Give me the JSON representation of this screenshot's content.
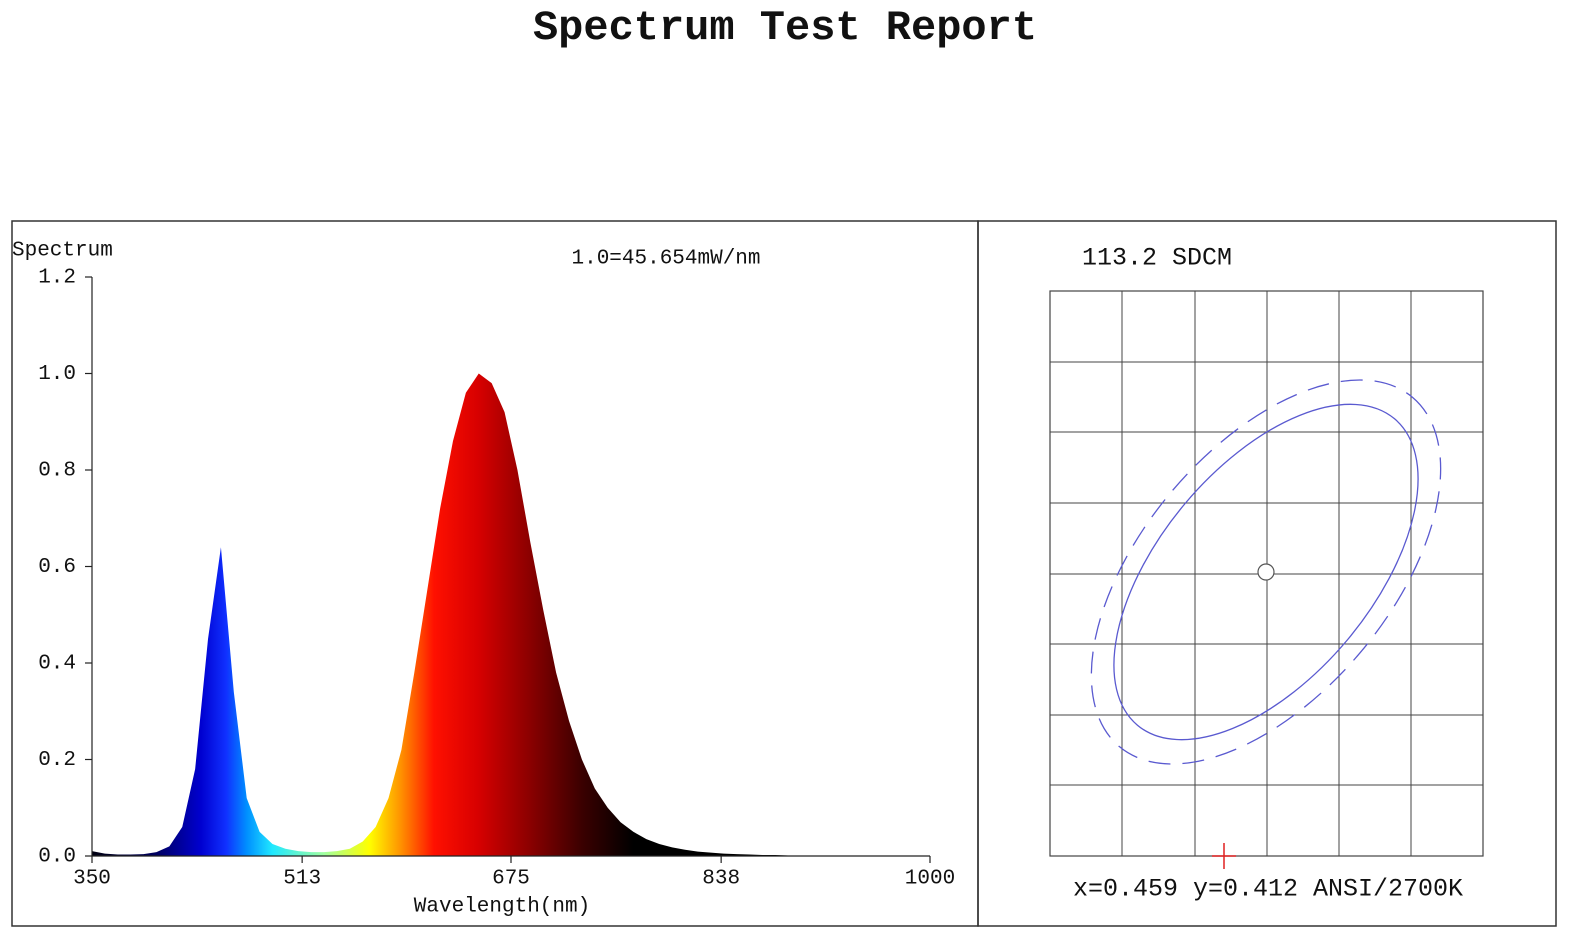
{
  "title": "Spectrum Test Report",
  "chart_data": {
    "type": "area",
    "ylabel": "Spectrum",
    "annotation": "1.0=45.654mW/nm",
    "xlabel": "Wavelength(nm)",
    "x": [
      350,
      360,
      370,
      380,
      390,
      400,
      410,
      420,
      430,
      440,
      450,
      460,
      470,
      480,
      490,
      500,
      510,
      520,
      530,
      540,
      550,
      560,
      570,
      580,
      590,
      600,
      610,
      620,
      630,
      640,
      650,
      660,
      670,
      680,
      690,
      700,
      710,
      720,
      730,
      740,
      750,
      760,
      770,
      780,
      790,
      800,
      810,
      820,
      830,
      840,
      850,
      860,
      870,
      880,
      890,
      900,
      910,
      920,
      930,
      940,
      950,
      960,
      970,
      980,
      990,
      1000
    ],
    "values": [
      0.01,
      0.005,
      0.003,
      0.003,
      0.004,
      0.008,
      0.02,
      0.06,
      0.18,
      0.45,
      0.64,
      0.34,
      0.12,
      0.05,
      0.025,
      0.015,
      0.01,
      0.008,
      0.008,
      0.01,
      0.015,
      0.03,
      0.06,
      0.12,
      0.22,
      0.38,
      0.55,
      0.72,
      0.86,
      0.96,
      1.0,
      0.98,
      0.92,
      0.8,
      0.65,
      0.51,
      0.38,
      0.28,
      0.2,
      0.14,
      0.1,
      0.07,
      0.05,
      0.035,
      0.025,
      0.018,
      0.013,
      0.009,
      0.007,
      0.005,
      0.004,
      0.003,
      0.002,
      0.002,
      0.001,
      0.001,
      0.001,
      0,
      0,
      0,
      0,
      0,
      0,
      0,
      0,
      0
    ],
    "xlim": [
      350,
      1000
    ],
    "xticks": [
      350,
      513,
      675,
      838,
      1000
    ],
    "ylim": [
      0,
      1.2
    ],
    "yticks": [
      {
        "value": 0,
        "label": "0.0"
      },
      0.2,
      0.4,
      0.6,
      0.8,
      {
        "value": 1,
        "label": "1.0"
      },
      1.2
    ]
  },
  "chromaticity": {
    "title": "113.2 SDCM",
    "caption": "x=0.459 y=0.412 ANSI/2700K"
  }
}
